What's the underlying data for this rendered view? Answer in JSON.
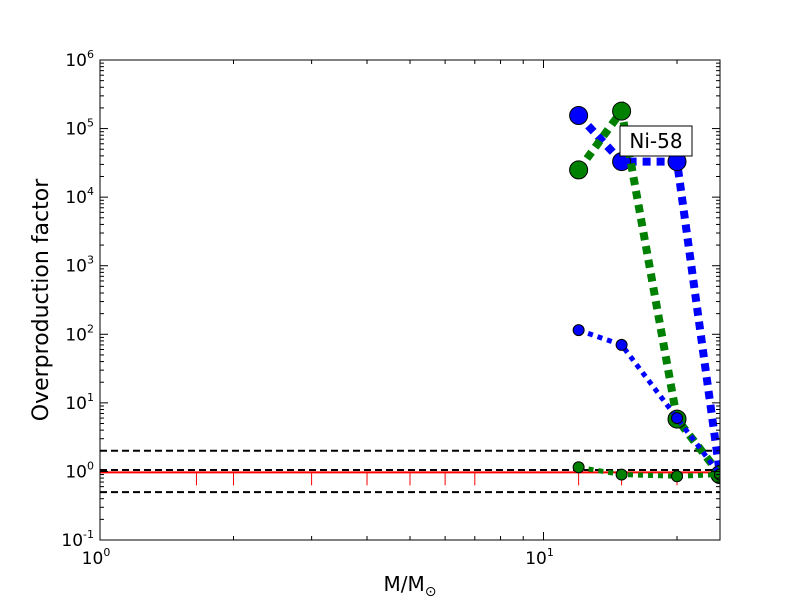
{
  "chart_data": {
    "type": "scatter",
    "xscale": "log",
    "yscale": "log",
    "xlim": [
      1,
      25
    ],
    "ylim": [
      0.1,
      1000000
    ],
    "xlabel_main": "M/M",
    "xlabel_sub": "⊙",
    "ylabel": "Overproduction factor",
    "annotation": "Ni-58",
    "x_ticks": [
      {
        "value": 1,
        "base": "10",
        "exp": "0"
      },
      {
        "value": 10,
        "base": "10",
        "exp": "1"
      }
    ],
    "y_ticks": [
      {
        "value": 0.1,
        "base": "10",
        "exp": "-1"
      },
      {
        "value": 1,
        "base": "10",
        "exp": "0"
      },
      {
        "value": 10,
        "base": "10",
        "exp": "1"
      },
      {
        "value": 100,
        "base": "10",
        "exp": "2"
      },
      {
        "value": 1000,
        "base": "10",
        "exp": "3"
      },
      {
        "value": 10000,
        "base": "10",
        "exp": "4"
      },
      {
        "value": 100000,
        "base": "10",
        "exp": "5"
      },
      {
        "value": 1000000,
        "base": "10",
        "exp": "6"
      }
    ],
    "reference_lines": [
      {
        "y": 2.0,
        "color": "#000000",
        "style": "dashed"
      },
      {
        "y": 1.05,
        "color": "#000000",
        "style": "dashed"
      },
      {
        "y": 0.5,
        "color": "#000000",
        "style": "dashed"
      },
      {
        "y": 0.97,
        "color": "#ff0000",
        "style": "solid"
      }
    ],
    "red_ticks_x": [
      1.65,
      2.0,
      3.0,
      4.0,
      5.0,
      6.0,
      7.0,
      12.0,
      15.0,
      20.0,
      25.0
    ],
    "series": [
      {
        "color": "#0000ff",
        "line": "thick-dotted",
        "marker": "large",
        "x": [
          12,
          15,
          20,
          25
        ],
        "y": [
          155000,
          33000,
          33000,
          0.9
        ]
      },
      {
        "color": "#008000",
        "line": "thick-dotted",
        "marker": "large",
        "x": [
          12,
          15,
          20,
          25
        ],
        "y": [
          25000,
          180000,
          5.8,
          0.9
        ]
      },
      {
        "color": "#0000ff",
        "line": "dotted",
        "marker": "small",
        "x": [
          12,
          15,
          20,
          25
        ],
        "y": [
          115,
          70,
          6,
          0.9
        ]
      },
      {
        "color": "#008000",
        "line": "dotted",
        "marker": "small",
        "x": [
          12,
          15,
          20,
          25
        ],
        "y": [
          1.15,
          0.9,
          0.85,
          0.9
        ]
      }
    ]
  }
}
